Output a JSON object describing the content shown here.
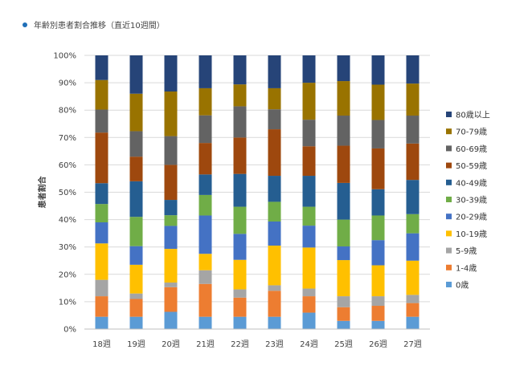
{
  "header": {
    "title": "年齢別患者割合推移（直近10週間）"
  },
  "colors": {
    "title_bullet": "#1f6fb8",
    "gridline": "#d9d9d9",
    "axis": "#bfbfbf"
  },
  "chart_data": {
    "type": "bar",
    "stacked": true,
    "title": "",
    "xlabel": "",
    "ylabel": "患者割合",
    "ylim": [
      0,
      100
    ],
    "y_ticks": [
      0,
      10,
      20,
      30,
      40,
      50,
      60,
      70,
      80,
      90,
      100
    ],
    "y_tick_labels": [
      "0%",
      "10%",
      "20%",
      "30%",
      "40%",
      "50%",
      "60%",
      "70%",
      "80%",
      "90%",
      "100%"
    ],
    "grid": true,
    "legend": "right",
    "categories": [
      "18週",
      "19週",
      "20週",
      "21週",
      "22週",
      "23週",
      "24週",
      "25週",
      "26週",
      "27週"
    ],
    "series": [
      {
        "name": "0歳",
        "color": "#5b9bd5",
        "values": [
          4.5,
          4.5,
          6.3,
          4.5,
          4.5,
          4.5,
          6.0,
          3.0,
          3.0,
          4.5
        ]
      },
      {
        "name": "1-4歳",
        "color": "#ed7d31",
        "values": [
          7.5,
          6.5,
          9.0,
          12.0,
          7.0,
          9.5,
          6.0,
          5.0,
          5.5,
          5.0
        ]
      },
      {
        "name": "5-9歳",
        "color": "#a5a5a5",
        "values": [
          6.0,
          2.0,
          1.7,
          5.0,
          3.0,
          2.0,
          2.8,
          4.0,
          3.5,
          3.0
        ]
      },
      {
        "name": "10-19歳",
        "color": "#ffc000",
        "values": [
          13.3,
          10.5,
          12.3,
          6.0,
          10.8,
          14.5,
          15.0,
          13.2,
          11.3,
          12.5
        ]
      },
      {
        "name": "20-29歳",
        "color": "#4472c4",
        "values": [
          7.7,
          6.8,
          8.4,
          14.0,
          9.5,
          8.8,
          8.0,
          5.0,
          9.2,
          10.0
        ]
      },
      {
        "name": "30-39歳",
        "color": "#70ad47",
        "values": [
          6.7,
          10.7,
          3.9,
          7.5,
          9.9,
          7.2,
          6.9,
          9.8,
          9.0,
          7.0
        ]
      },
      {
        "name": "40-49歳",
        "color": "#255e91",
        "values": [
          7.6,
          13.0,
          5.6,
          7.5,
          12.0,
          9.5,
          11.3,
          13.4,
          9.6,
          12.5
        ]
      },
      {
        "name": "50-59歳",
        "color": "#9e480e",
        "values": [
          18.5,
          9.0,
          12.8,
          11.5,
          13.3,
          17.0,
          10.8,
          13.6,
          14.9,
          13.3
        ]
      },
      {
        "name": "60-69歳",
        "color": "#636363",
        "values": [
          8.4,
          9.3,
          10.5,
          10.1,
          11.4,
          7.3,
          9.7,
          11.0,
          10.4,
          10.2
        ]
      },
      {
        "name": "70-79歳",
        "color": "#997300",
        "values": [
          10.8,
          13.7,
          16.3,
          9.9,
          8.0,
          7.7,
          13.5,
          12.6,
          12.9,
          11.7
        ]
      },
      {
        "name": "80歳以上",
        "color": "#264478",
        "values": [
          9.0,
          14.0,
          13.2,
          12.0,
          10.6,
          12.0,
          10.0,
          9.4,
          10.7,
          10.3
        ]
      }
    ]
  }
}
